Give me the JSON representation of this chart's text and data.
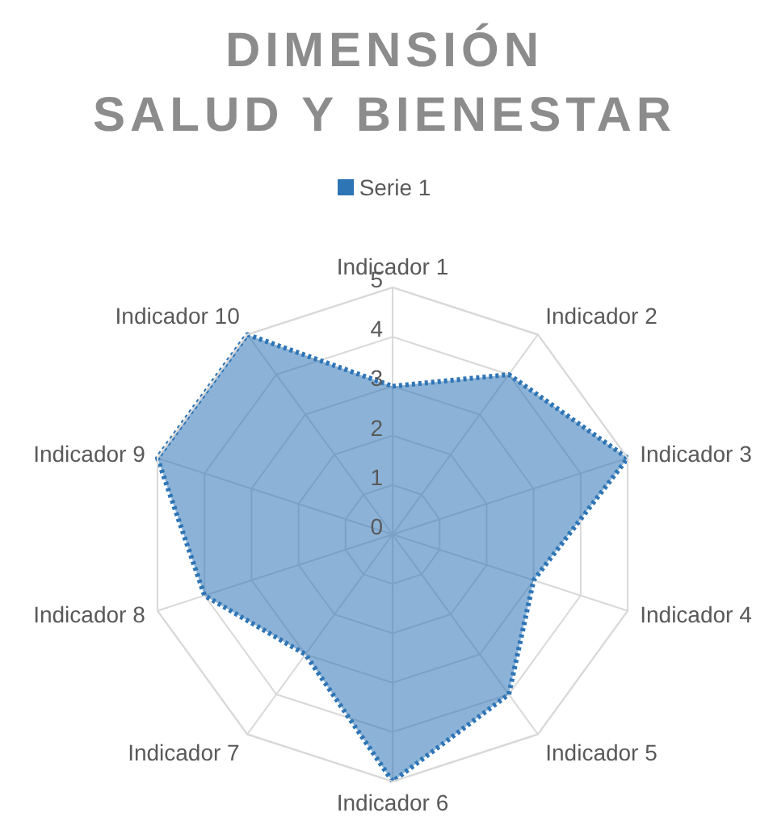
{
  "chart_data": {
    "type": "radar",
    "title": "DIMENSIÓN\nSALUD Y BIENESTAR",
    "categories": [
      "Indicador 1",
      "Indicador 2",
      "Indicador 3",
      "Indicador 4",
      "Indicador 5",
      "Indicador 6",
      "Indicador 7",
      "Indicador 8",
      "Indicador 9",
      "Indicador 10"
    ],
    "series": [
      {
        "name": "Serie 1",
        "color": "#2e75b6",
        "values": [
          3,
          4,
          5,
          3,
          4,
          5,
          3,
          4,
          5,
          5
        ]
      }
    ],
    "ylim": [
      0,
      5
    ],
    "yticks": [
      0,
      1,
      2,
      3,
      4,
      5
    ],
    "grid": true,
    "legend": "top",
    "marker": "none",
    "line_style": "dotted"
  }
}
